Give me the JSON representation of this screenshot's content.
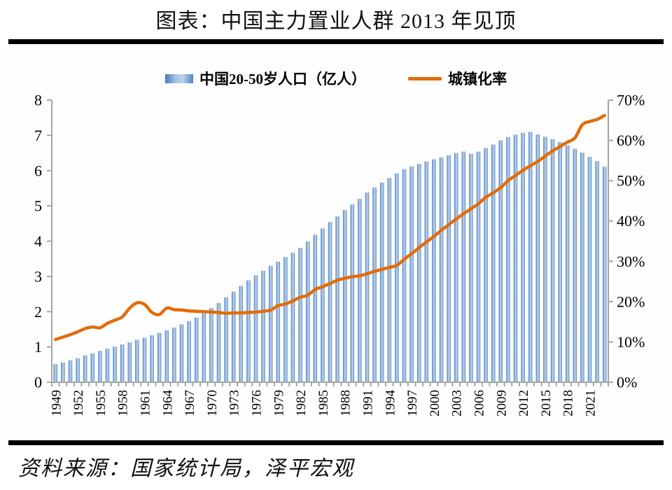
{
  "page": {
    "title": "图表：中国主力置业人群 2013 年见顶",
    "source_note": "资料来源：国家统计局，泽平宏观"
  },
  "legend": {
    "bar_label": "中国20-50岁人口（亿人）",
    "line_label": "城镇化率"
  },
  "colors": {
    "bar_edge": "#4679b6",
    "bar_mid": "#a6c5e7",
    "bar_mid2": "#bcd2ee",
    "bar_edge2": "#5585be",
    "line": "#e36c09",
    "axis": "#a6a6a6",
    "text": "#000000",
    "rule": "#000000"
  },
  "chart_data": {
    "type": "combo (bar + line)",
    "title": "图表：中国主力置业人群 2013 年见顶",
    "x": [
      1949,
      1950,
      1951,
      1952,
      1953,
      1954,
      1955,
      1956,
      1957,
      1958,
      1959,
      1960,
      1961,
      1962,
      1963,
      1964,
      1965,
      1966,
      1967,
      1968,
      1969,
      1970,
      1971,
      1972,
      1973,
      1974,
      1975,
      1976,
      1977,
      1978,
      1979,
      1980,
      1981,
      1982,
      1983,
      1984,
      1985,
      1986,
      1987,
      1988,
      1989,
      1990,
      1991,
      1992,
      1993,
      1994,
      1995,
      1996,
      1997,
      1998,
      1999,
      2000,
      2001,
      2002,
      2003,
      2004,
      2005,
      2006,
      2007,
      2008,
      2009,
      2010,
      2011,
      2012,
      2013,
      2014,
      2015,
      2016,
      2017,
      2018,
      2019,
      2020,
      2021,
      2022,
      2023
    ],
    "series": [
      {
        "name": "中国20-50岁人口（亿人）",
        "type": "bar",
        "axis": "left",
        "unit": "亿人",
        "values": [
          0.51,
          0.56,
          0.62,
          0.68,
          0.76,
          0.82,
          0.89,
          0.95,
          1.01,
          1.07,
          1.13,
          1.2,
          1.26,
          1.33,
          1.4,
          1.47,
          1.55,
          1.64,
          1.73,
          1.83,
          1.95,
          2.1,
          2.25,
          2.41,
          2.57,
          2.73,
          2.89,
          3.03,
          3.16,
          3.3,
          3.42,
          3.55,
          3.67,
          3.81,
          3.99,
          4.18,
          4.36,
          4.54,
          4.7,
          4.88,
          5.04,
          5.2,
          5.38,
          5.52,
          5.66,
          5.79,
          5.92,
          6.04,
          6.12,
          6.19,
          6.26,
          6.32,
          6.38,
          6.44,
          6.5,
          6.54,
          6.48,
          6.54,
          6.64,
          6.74,
          6.86,
          6.95,
          7.02,
          7.07,
          7.1,
          7.03,
          6.96,
          6.89,
          6.81,
          6.72,
          6.62,
          6.51,
          6.39,
          6.27,
          6.11
        ]
      },
      {
        "name": "城镇化率",
        "type": "line",
        "axis": "right",
        "unit": "%",
        "values": [
          10.6,
          11.2,
          11.8,
          12.5,
          13.3,
          13.7,
          13.5,
          14.6,
          15.4,
          16.2,
          18.4,
          19.7,
          19.3,
          17.3,
          16.8,
          18.4,
          18.0,
          17.9,
          17.7,
          17.6,
          17.5,
          17.4,
          17.3,
          17.1,
          17.2,
          17.2,
          17.3,
          17.4,
          17.6,
          17.9,
          19.0,
          19.4,
          20.2,
          21.1,
          21.6,
          23.0,
          23.7,
          24.5,
          25.3,
          25.8,
          26.2,
          26.4,
          26.9,
          27.5,
          28.0,
          28.5,
          29.0,
          30.5,
          31.9,
          33.4,
          34.8,
          36.2,
          37.7,
          39.1,
          40.5,
          41.8,
          43.0,
          44.3,
          45.9,
          47.0,
          48.3,
          50.0,
          51.3,
          52.6,
          53.7,
          54.8,
          56.1,
          57.4,
          58.5,
          59.6,
          60.6,
          63.9,
          64.7,
          65.2,
          66.2
        ]
      }
    ],
    "left_axis": {
      "min": 0,
      "max": 8,
      "tick_step": 1,
      "tick_labels": [
        "0",
        "1",
        "2",
        "3",
        "4",
        "5",
        "6",
        "7",
        "8"
      ]
    },
    "right_axis": {
      "min": 0,
      "max": 70,
      "tick_step": 10,
      "tick_labels": [
        "0%",
        "10%",
        "20%",
        "30%",
        "40%",
        "50%",
        "60%",
        "70%"
      ]
    },
    "x_tick_labels": [
      "1949",
      "1952",
      "1955",
      "1958",
      "1961",
      "1964",
      "1967",
      "1970",
      "1973",
      "1976",
      "1979",
      "1982",
      "1985",
      "1988",
      "1991",
      "1994",
      "1997",
      "2000",
      "2003",
      "2006",
      "2009",
      "2012",
      "2015",
      "2018",
      "2021"
    ],
    "x_label_every": 3,
    "grid": false,
    "legend_position": "top-center"
  }
}
